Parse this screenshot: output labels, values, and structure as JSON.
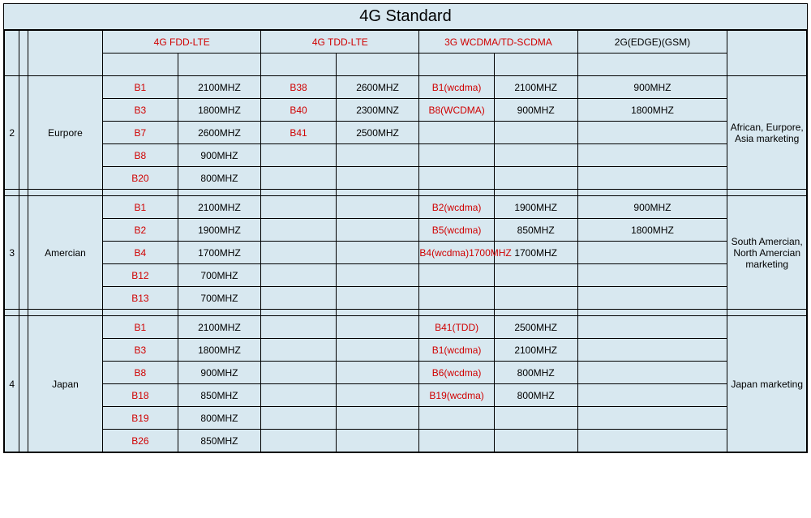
{
  "title": "4G Standard",
  "colors": {
    "bg": "#d8e8f0",
    "red": "#d00000",
    "border": "#000000"
  },
  "headers": {
    "fdd": "4G FDD-LTE",
    "tdd": "4G TDD-LTE",
    "wcdma": "3G WCDMA/TD-SCDMA",
    "gsm": "2G(EDGE)(GSM)"
  },
  "sections": [
    {
      "num": "2",
      "region": "Eurpore",
      "market": "African, Eurpore, Asia marketing",
      "rows": [
        {
          "fdd_b": "B1",
          "fdd_f": "2100MHZ",
          "tdd_b": "B38",
          "tdd_f": "2600MHZ",
          "w_b": "B1(wcdma)",
          "w_f": "2100MHZ",
          "g": "900MHZ"
        },
        {
          "fdd_b": "B3",
          "fdd_f": "1800MHZ",
          "tdd_b": "B40",
          "tdd_f": "2300MNZ",
          "w_b": "B8(WCDMA)",
          "w_f": "900MHZ",
          "g": "1800MHZ"
        },
        {
          "fdd_b": "B7",
          "fdd_f": "2600MHZ",
          "tdd_b": "B41",
          "tdd_f": "2500MHZ",
          "w_b": "",
          "w_f": "",
          "g": ""
        },
        {
          "fdd_b": "B8",
          "fdd_f": "900MHZ",
          "tdd_b": "",
          "tdd_f": "",
          "w_b": "",
          "w_f": "",
          "g": ""
        },
        {
          "fdd_b": "B20",
          "fdd_f": "800MHZ",
          "tdd_b": "",
          "tdd_f": "",
          "w_b": "",
          "w_f": "",
          "g": ""
        }
      ]
    },
    {
      "num": "3",
      "region": "Amercian",
      "market": "South Amercian, North Amercian marketing",
      "rows": [
        {
          "fdd_b": "B1",
          "fdd_f": "2100MHZ",
          "tdd_b": "",
          "tdd_f": "",
          "w_b": "B2(wcdma)",
          "w_f": "1900MHZ",
          "g": "900MHZ"
        },
        {
          "fdd_b": "B2",
          "fdd_f": "1900MHZ",
          "tdd_b": "",
          "tdd_f": "",
          "w_b": "B5(wcdma)",
          "w_f": "850MHZ",
          "g": "1800MHZ"
        },
        {
          "fdd_b": "B4",
          "fdd_f": "1700MHZ",
          "tdd_b": "",
          "tdd_f": "",
          "w_b": "B4(wcdma)1700MHZ",
          "w_f": "1700MHZ",
          "g": ""
        },
        {
          "fdd_b": "B12",
          "fdd_f": "700MHZ",
          "tdd_b": "",
          "tdd_f": "",
          "w_b": "",
          "w_f": "",
          "g": ""
        },
        {
          "fdd_b": "B13",
          "fdd_f": "700MHZ",
          "tdd_b": "",
          "tdd_f": "",
          "w_b": "",
          "w_f": "",
          "g": ""
        }
      ]
    },
    {
      "num": "4",
      "region": "Japan",
      "market": "Japan marketing",
      "rows": [
        {
          "fdd_b": "B1",
          "fdd_f": "2100MHZ",
          "tdd_b": "",
          "tdd_f": "",
          "w_b": "B41(TDD)",
          "w_f": "2500MHZ",
          "g": ""
        },
        {
          "fdd_b": "B3",
          "fdd_f": "1800MHZ",
          "tdd_b": "",
          "tdd_f": "",
          "w_b": "B1(wcdma)",
          "w_f": "2100MHZ",
          "g": ""
        },
        {
          "fdd_b": "B8",
          "fdd_f": "900MHZ",
          "tdd_b": "",
          "tdd_f": "",
          "w_b": "B6(wcdma)",
          "w_f": "800MHZ",
          "g": ""
        },
        {
          "fdd_b": "B18",
          "fdd_f": "850MHZ",
          "tdd_b": "",
          "tdd_f": "",
          "w_b": "B19(wcdma)",
          "w_f": "800MHZ",
          "g": ""
        },
        {
          "fdd_b": "B19",
          "fdd_f": "800MHZ",
          "tdd_b": "",
          "tdd_f": "",
          "w_b": "",
          "w_f": "",
          "g": ""
        },
        {
          "fdd_b": "B26",
          "fdd_f": "850MHZ",
          "tdd_b": "",
          "tdd_f": "",
          "w_b": "",
          "w_f": "",
          "g": ""
        }
      ]
    }
  ]
}
